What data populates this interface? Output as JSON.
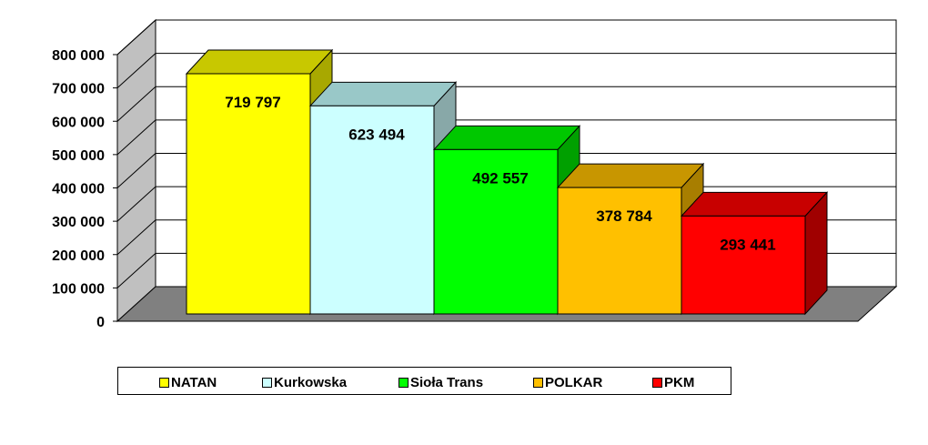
{
  "chart_data": {
    "type": "bar",
    "three_d": true,
    "categories": [
      "NATAN",
      "Kurkowska",
      "Sioła Trans",
      "POLKAR",
      "PKM"
    ],
    "values": [
      719797,
      623494,
      492557,
      378784,
      293441
    ],
    "data_labels": [
      "719 797",
      "623 494",
      "492 557",
      "378 784",
      "293 441"
    ],
    "colors": [
      {
        "front": "#ffff00",
        "top": "#c8c800",
        "side": "#a8a800"
      },
      {
        "front": "#ccffff",
        "top": "#99c8c8",
        "side": "#88a8a8"
      },
      {
        "front": "#00ff00",
        "top": "#00c800",
        "side": "#00a000"
      },
      {
        "front": "#ffc000",
        "top": "#c89600",
        "side": "#a87e00"
      },
      {
        "front": "#ff0000",
        "top": "#c80000",
        "side": "#a00000"
      }
    ],
    "ylim": [
      0,
      800000
    ],
    "y_ticks": [
      {
        "value": 0,
        "label": "0"
      },
      {
        "value": 100000,
        "label": "100 000"
      },
      {
        "value": 200000,
        "label": "200 000"
      },
      {
        "value": 300000,
        "label": "300 000"
      },
      {
        "value": 400000,
        "label": "400 000"
      },
      {
        "value": 500000,
        "label": "500 000"
      },
      {
        "value": 600000,
        "label": "600 000"
      },
      {
        "value": 700000,
        "label": "700 000"
      },
      {
        "value": 800000,
        "label": "800 000"
      }
    ],
    "grid": true,
    "legend_position": "bottom",
    "title": "",
    "xlabel": "",
    "ylabel": ""
  }
}
